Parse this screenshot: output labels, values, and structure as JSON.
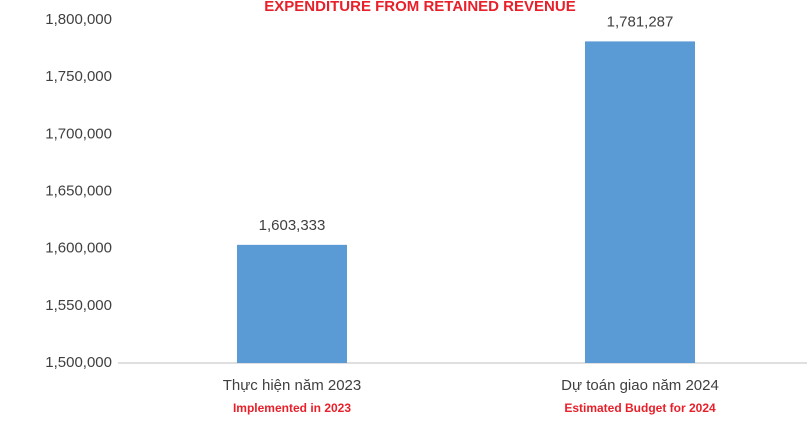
{
  "chart_data": {
    "type": "bar",
    "title": "EXPENDITURE FROM RETAINED REVENUE",
    "categories": [
      "Thực hiện năm 2023",
      "Dự toán giao năm 2024"
    ],
    "category_subtitles": [
      "Implemented in 2023",
      "Estimated Budget for 2024"
    ],
    "values": [
      1603333,
      1781287
    ],
    "value_labels": [
      "1,603,333",
      "1,781,287"
    ],
    "color": "#5b9bd5",
    "ylim": [
      1500000,
      1800000
    ],
    "yticks": [
      {
        "value": 1500000,
        "label": "1,500,000"
      },
      {
        "value": 1550000,
        "label": "1,550,000"
      },
      {
        "value": 1600000,
        "label": "1,600,000"
      },
      {
        "value": 1650000,
        "label": "1,650,000"
      },
      {
        "value": 1700000,
        "label": "1,700,000"
      },
      {
        "value": 1750000,
        "label": "1,750,000"
      },
      {
        "value": 1800000,
        "label": "1,800,000"
      }
    ],
    "grid": false
  }
}
